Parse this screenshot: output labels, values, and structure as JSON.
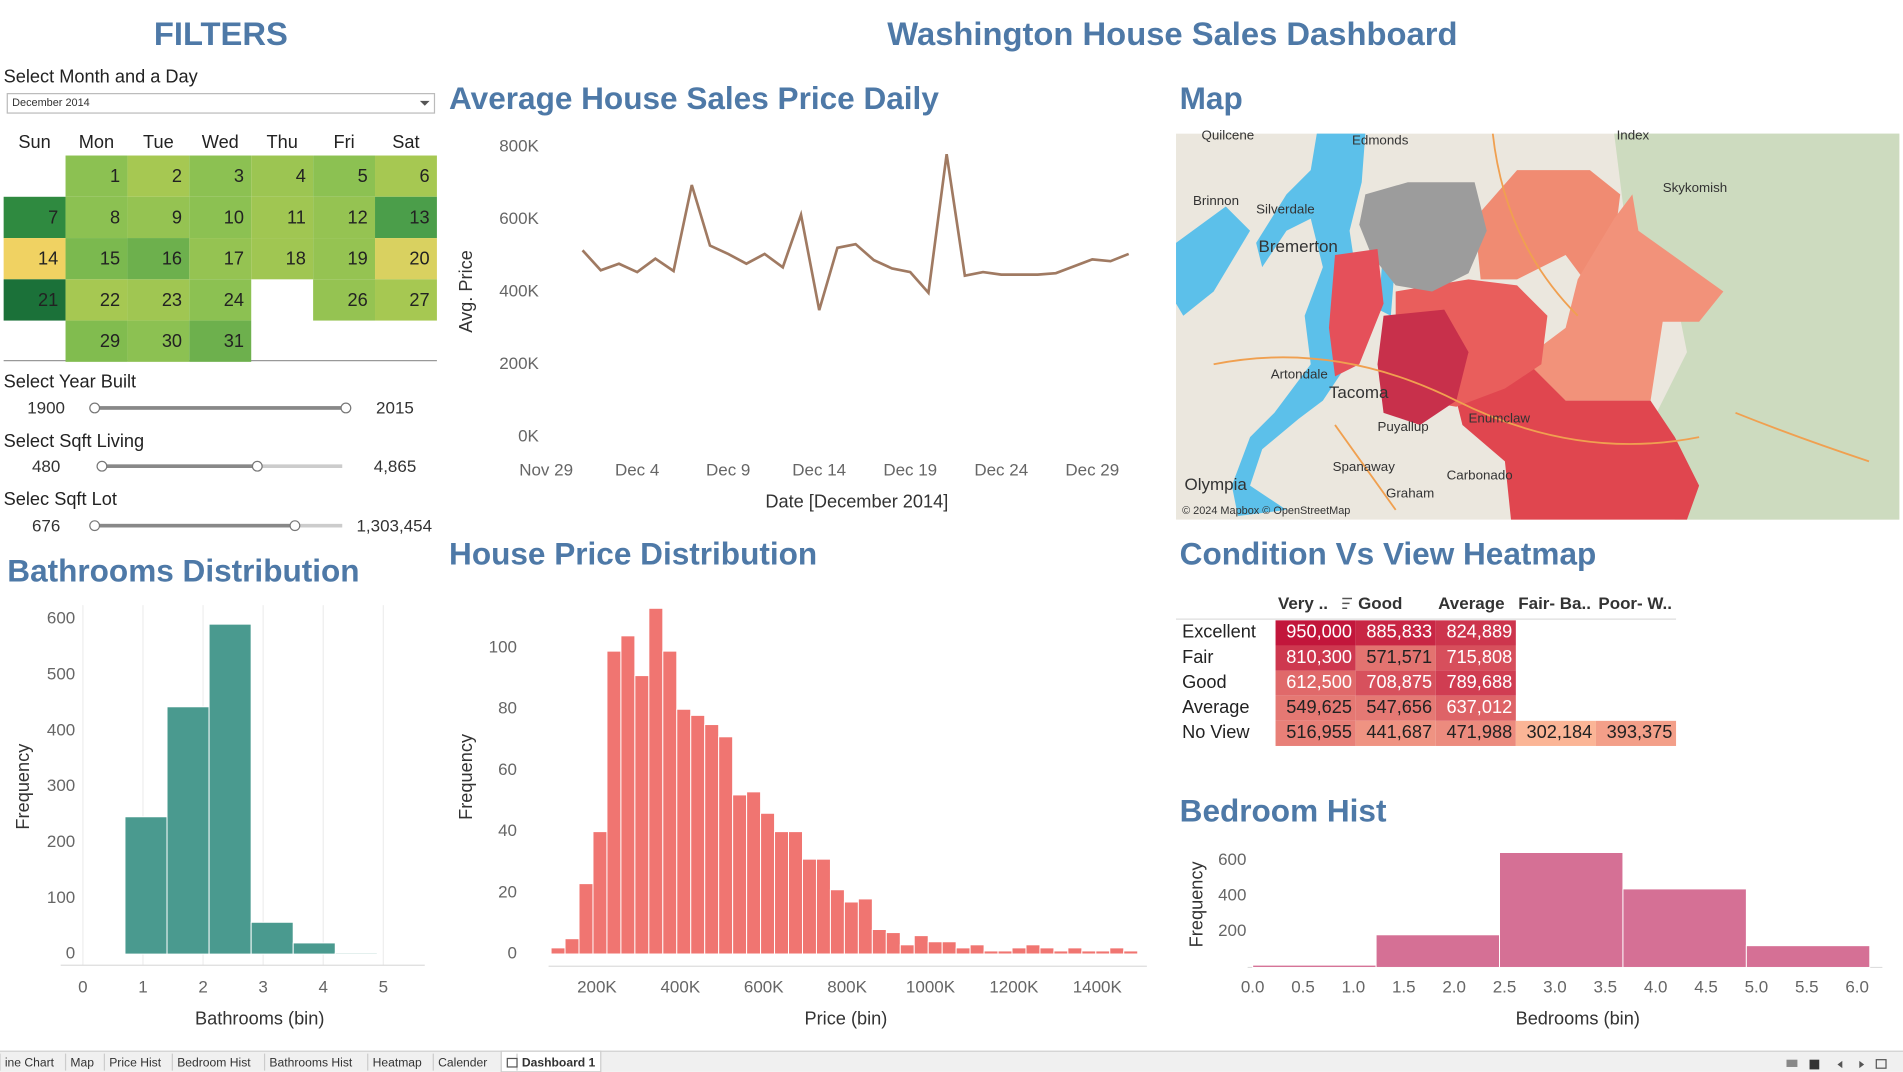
{
  "header": {
    "title": "Washington House Sales Dashboard"
  },
  "filters": {
    "title": "FILTERS",
    "month": {
      "label": "Select Month and a Day",
      "selected": "December 2014",
      "weekdays": [
        "Sun",
        "Mon",
        "Tue",
        "Wed",
        "Thu",
        "Fri",
        "Sat"
      ],
      "days": [
        {
          "day": 1,
          "color": "#8cc152"
        },
        {
          "day": 2,
          "color": "#a6c852"
        },
        {
          "day": 3,
          "color": "#8cc152"
        },
        {
          "day": 4,
          "color": "#9cc552"
        },
        {
          "day": 5,
          "color": "#8cc152"
        },
        {
          "day": 6,
          "color": "#a6c852"
        },
        {
          "day": 7,
          "color": "#2f8a40"
        },
        {
          "day": 8,
          "color": "#8cc152"
        },
        {
          "day": 9,
          "color": "#95c352"
        },
        {
          "day": 10,
          "color": "#8cc152"
        },
        {
          "day": 11,
          "color": "#a0c652"
        },
        {
          "day": 12,
          "color": "#95c352"
        },
        {
          "day": 13,
          "color": "#4b9e4a"
        },
        {
          "day": 14,
          "color": "#f0d262"
        },
        {
          "day": 15,
          "color": "#7bb94f"
        },
        {
          "day": 16,
          "color": "#6db04d"
        },
        {
          "day": 17,
          "color": "#95c352"
        },
        {
          "day": 18,
          "color": "#a0c652"
        },
        {
          "day": 19,
          "color": "#95c352"
        },
        {
          "day": 20,
          "color": "#d9d160"
        },
        {
          "day": 21,
          "color": "#1b7139"
        },
        {
          "day": 22,
          "color": "#a6c852"
        },
        {
          "day": 23,
          "color": "#a0c652"
        },
        {
          "day": 24,
          "color": "#8cc152"
        },
        {
          "day": 26,
          "color": "#95c352"
        },
        {
          "day": 27,
          "color": "#a6c852"
        },
        {
          "day": 29,
          "color": "#81bc4f"
        },
        {
          "day": 30,
          "color": "#8cc152"
        },
        {
          "day": 31,
          "color": "#6db04d"
        }
      ]
    },
    "sliders": [
      {
        "label": "Select Year Built",
        "min": 1900,
        "max": 2015
      },
      {
        "label": "Select Sqft Living",
        "min": 480,
        "max": "4,865"
      },
      {
        "label": "Selec Sqft Lot",
        "min": 676,
        "max": "1,303,454"
      }
    ]
  },
  "map": {
    "title": "Map",
    "labels": [
      "Quilcene",
      "Edmonds",
      "Index",
      "Brinnon",
      "Silverdale",
      "Skykomish",
      "Bremerton",
      "Artondale",
      "Tacoma",
      "Puyallup",
      "Enumclaw",
      "Spanaway",
      "Carbonado",
      "Graham",
      "Olympia"
    ],
    "attribution": "© 2024 Mapbox © OpenStreetMap"
  },
  "chart_data": [
    {
      "type": "line",
      "title": "Average House Sales  Price Daily",
      "x_label": "Date [December 2014]",
      "y_label": "Avg. Price",
      "x": [
        1,
        2,
        3,
        4,
        5,
        6,
        7,
        8,
        9,
        10,
        11,
        12,
        13,
        14,
        15,
        16,
        17,
        18,
        19,
        20,
        21,
        22,
        23,
        24,
        26,
        27,
        29,
        30,
        31
      ],
      "values": [
        515000,
        460000,
        478000,
        455000,
        492000,
        458000,
        695000,
        528000,
        505000,
        478000,
        505000,
        468000,
        613000,
        350000,
        522000,
        532000,
        488000,
        465000,
        455000,
        398000,
        780000,
        445000,
        455000,
        448000,
        448000,
        452000,
        490000,
        485000,
        505000
      ],
      "color": "#a07a62",
      "xlim": [
        -1.5,
        32.5
      ],
      "xticks": [
        {
          "value": -1,
          "label": "Nov 29"
        },
        {
          "value": 4,
          "label": "Dec 4"
        },
        {
          "value": 9,
          "label": "Dec 9"
        },
        {
          "value": 14,
          "label": "Dec 14"
        },
        {
          "value": 19,
          "label": "Dec 19"
        },
        {
          "value": 24,
          "label": "Dec 24"
        },
        {
          "value": 29,
          "label": "Dec 29"
        }
      ],
      "ylim": [
        0,
        850000
      ],
      "yticks": [
        {
          "value": 0,
          "label": "0K"
        },
        {
          "value": 200000,
          "label": "200K"
        },
        {
          "value": 400000,
          "label": "400K"
        },
        {
          "value": 600000,
          "label": "600K"
        },
        {
          "value": 800000,
          "label": "800K"
        }
      ],
      "grid": false
    },
    {
      "type": "histogram",
      "title": "Bathrooms Distribution",
      "x_label": "Bathrooms (bin)",
      "y_label": "Frequency",
      "bins": [
        0.7,
        1.4,
        2.1,
        2.8,
        3.5,
        4.2,
        4.9
      ],
      "values": [
        246,
        443,
        591,
        57,
        20,
        2
      ],
      "color": "#4a9a8f",
      "xlim": [
        -0.37,
        5.69
      ],
      "xticks": [
        0,
        1,
        2,
        3,
        4,
        5
      ],
      "ylim": [
        -20,
        625
      ],
      "yticks": [
        0,
        100,
        200,
        300,
        400,
        500,
        600
      ],
      "grid": "x"
    },
    {
      "type": "histogram",
      "title": "House Price Distribution",
      "x_label": "Price (bin)",
      "y_label": "Frequency",
      "bins": [
        90000,
        123500,
        157000,
        190500,
        224000,
        257500,
        291000,
        324500,
        358000,
        391500,
        425000,
        458500,
        492000,
        525500,
        559000,
        592500,
        626000,
        659500,
        693000,
        726500,
        760000,
        793500,
        827000,
        860500,
        894000,
        927500,
        961000,
        994500,
        1028000,
        1061500,
        1095000,
        1128500,
        1162000,
        1195500,
        1229000,
        1262500,
        1296000,
        1329500,
        1363000,
        1396500,
        1430000,
        1463500,
        1497000
      ],
      "values": [
        2,
        5,
        23,
        40,
        99,
        104,
        91,
        113,
        99,
        80,
        78,
        75,
        71,
        52,
        53,
        46,
        40,
        40,
        31,
        31,
        21,
        17,
        18,
        8,
        7,
        3,
        6,
        4,
        4,
        2,
        3,
        1,
        1,
        2,
        3,
        2,
        1,
        2,
        1,
        1,
        2,
        1
      ],
      "color": "#f07571",
      "xlim": [
        84000,
        1519000
      ],
      "xticks": [
        {
          "value": 200000,
          "label": "200K"
        },
        {
          "value": 400000,
          "label": "400K"
        },
        {
          "value": 600000,
          "label": "600K"
        },
        {
          "value": 800000,
          "label": "800K"
        },
        {
          "value": 1000000,
          "label": "1000K"
        },
        {
          "value": 1200000,
          "label": "1200K"
        },
        {
          "value": 1400000,
          "label": "1400K"
        }
      ],
      "ylim": [
        -4,
        117
      ],
      "yticks": [
        0,
        20,
        40,
        60,
        80,
        100
      ],
      "grid": false
    },
    {
      "type": "heatmap",
      "title": "Condition Vs View Heatmap",
      "columns": [
        "Very ..",
        "Good",
        "Average",
        "Fair- Ba..",
        "Poor- W.."
      ],
      "rows": [
        "Excellent",
        "Fair",
        "Good",
        "Average",
        "No View"
      ],
      "values": [
        [
          950000,
          885833,
          824889,
          null,
          null
        ],
        [
          810300,
          571571,
          715808,
          null,
          null
        ],
        [
          612500,
          708875,
          789688,
          null,
          null
        ],
        [
          549625,
          547656,
          637012,
          null,
          null
        ],
        [
          516955,
          441687,
          471988,
          302184,
          393375
        ]
      ],
      "value_labels": [
        [
          "950,000",
          "885,833",
          "824,889",
          null,
          null
        ],
        [
          "810,300",
          "571,571",
          "715,808",
          null,
          null
        ],
        [
          "612,500",
          "708,875",
          "789,688",
          null,
          null
        ],
        [
          "549,625",
          "547,656",
          "637,012",
          null,
          null
        ],
        [
          "516,955",
          "441,687",
          "471,988",
          "302,184",
          "393,375"
        ]
      ],
      "color_range": [
        "#fbb596",
        "#c2163b"
      ]
    },
    {
      "type": "histogram",
      "title": "Bedroom Hist",
      "x_label": "Bedrooms (bin)",
      "y_label": "Frequency",
      "bins": [
        0,
        1.225,
        2.45,
        3.675,
        4.9,
        6.125
      ],
      "values": [
        13,
        183,
        644,
        440,
        122
      ],
      "color": "#d57095",
      "xlim": [
        -0.05,
        6.25
      ],
      "xticks": [
        {
          "value": 0,
          "label": "0.0"
        },
        0.5,
        {
          "value": 1,
          "label": "1.0"
        },
        1.5,
        {
          "value": 2,
          "label": "2.0"
        },
        2.5,
        {
          "value": 3,
          "label": "3.0"
        },
        3.5,
        {
          "value": 4,
          "label": "4.0"
        },
        4.5,
        {
          "value": 5,
          "label": "5.0"
        },
        5.5,
        {
          "value": 6,
          "label": "6.0"
        }
      ],
      "ylim": [
        0,
        680
      ],
      "yticks": [
        200,
        400,
        600
      ],
      "grid": false
    }
  ],
  "tabs": [
    "ine Chart",
    "Map",
    "Price Hist",
    "Bedroom Hist",
    "Bathrooms Hist",
    "Heatmap",
    "Calender",
    "Dashboard 1"
  ]
}
